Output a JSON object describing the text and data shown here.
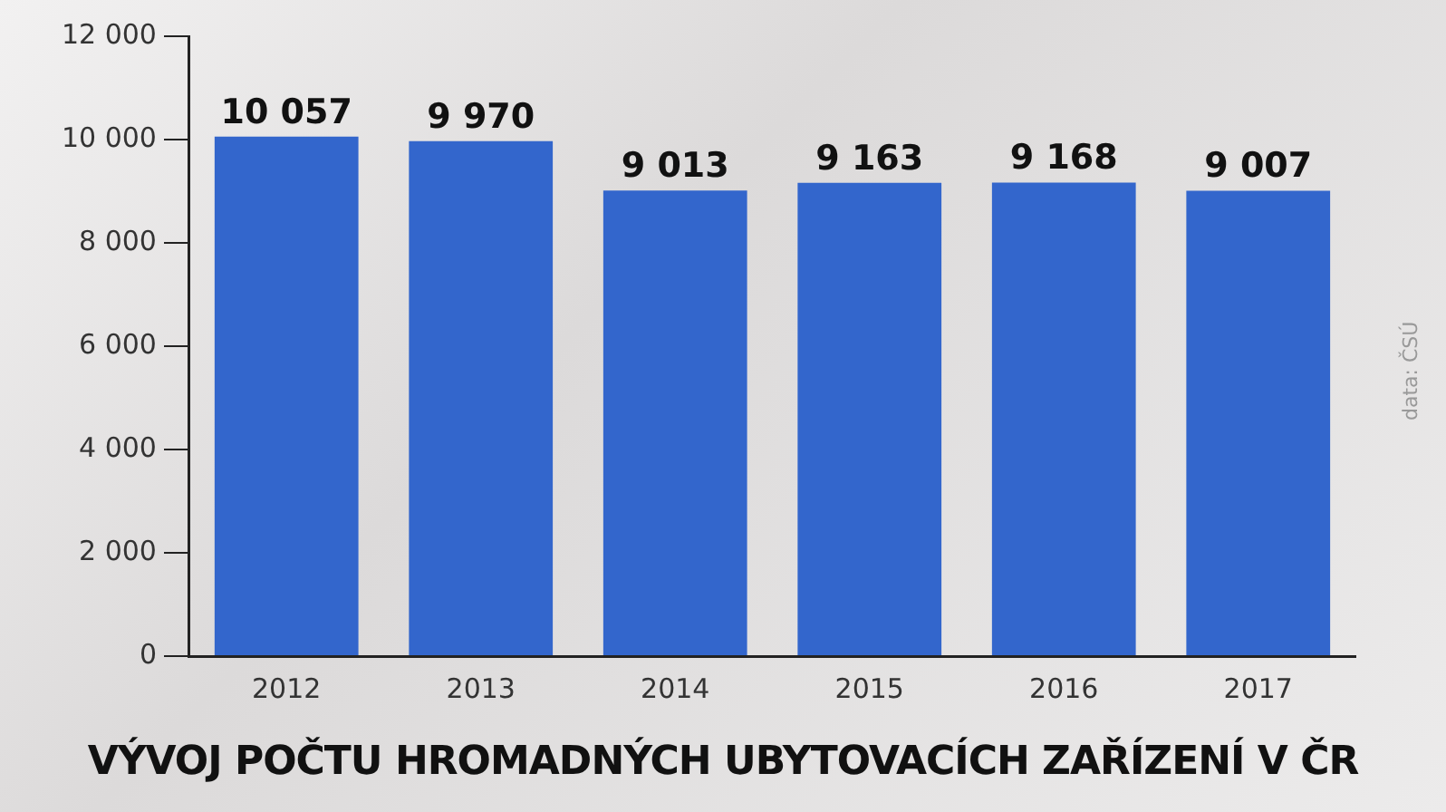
{
  "chart_data": {
    "type": "bar",
    "title": "VÝVOJ POČTU HROMADNÝCH UBYTOVACÍCH ZAŘÍZENÍ V ČR",
    "categories": [
      "2012",
      "2013",
      "2014",
      "2015",
      "2016",
      "2017"
    ],
    "values": [
      10057,
      9970,
      9013,
      9163,
      9168,
      9007
    ],
    "value_labels": [
      "10 057",
      "9 970",
      "9 013",
      "9 163",
      "9 168",
      "9 007"
    ],
    "color": "#3366cc",
    "ylim": [
      0,
      12000
    ],
    "yticks": [
      0,
      {
        "value": 2000,
        "label": "2 000"
      },
      {
        "value": 4000,
        "label": "4 000"
      },
      {
        "value": 6000,
        "label": "6 000"
      },
      {
        "value": 8000,
        "label": "8 000"
      },
      {
        "value": 10000,
        "label": "10 000"
      },
      {
        "value": 12000,
        "label": "12 000"
      }
    ],
    "grid": false,
    "annotations": [
      "data: ČSÚ"
    ]
  }
}
